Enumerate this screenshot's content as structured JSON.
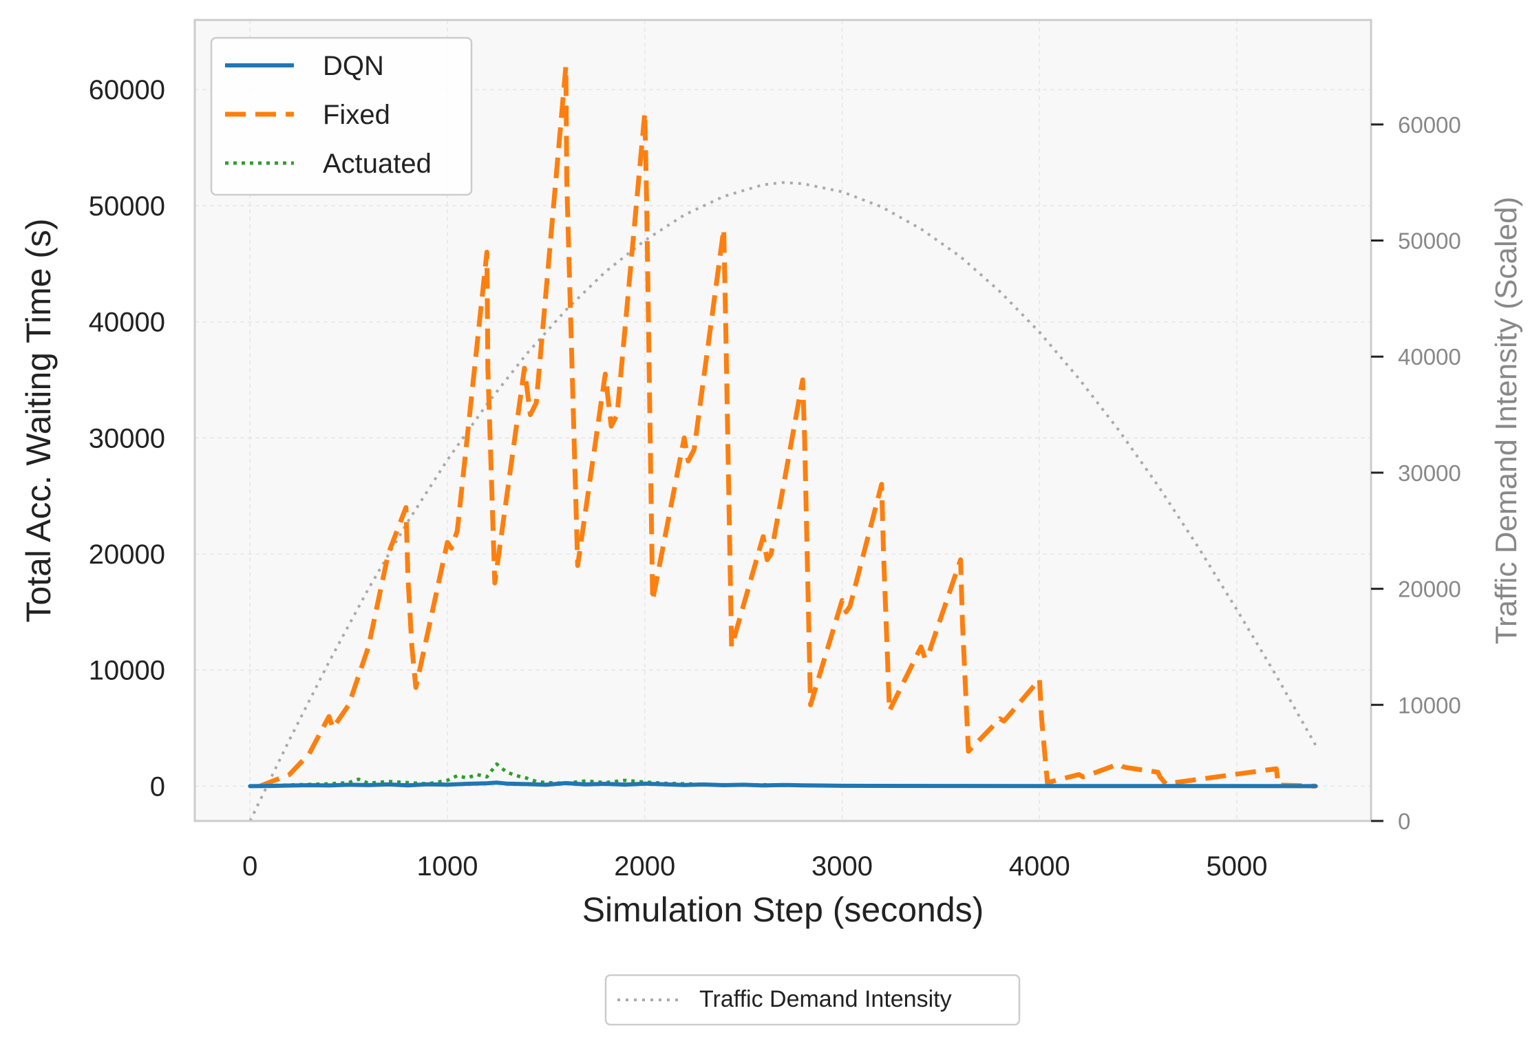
{
  "chart_data": {
    "type": "line",
    "title": "",
    "xlabel": "Simulation Step (seconds)",
    "ylabel": "Total Acc. Waiting Time (s)",
    "y2label": "Traffic Demand Intensity (Scaled)",
    "xlim": [
      -280,
      5680
    ],
    "ylim": [
      -3000,
      66000
    ],
    "y2lim": [
      0,
      69000
    ],
    "x_ticks": [
      0,
      1000,
      2000,
      3000,
      4000,
      5000
    ],
    "y_ticks": [
      0,
      10000,
      20000,
      30000,
      40000,
      50000,
      60000
    ],
    "y2_ticks": [
      0,
      10000,
      20000,
      30000,
      40000,
      50000,
      60000
    ],
    "x_tick_labels": [
      "0",
      "1000",
      "2000",
      "3000",
      "4000",
      "5000"
    ],
    "y_tick_labels": [
      "0",
      "10000",
      "20000",
      "30000",
      "40000",
      "50000",
      "60000"
    ],
    "y2_tick_labels": [
      "0",
      "10000",
      "20000",
      "30000",
      "40000",
      "50000",
      "60000"
    ],
    "grid": true,
    "legend_position": "top-left",
    "secondary_legend_position": "bottom-center",
    "colors": {
      "dqn": "#1f77b4",
      "fixed": "#ff7f0e",
      "actuated": "#2ca02c",
      "demand": "#aaaaaa",
      "plot_bg": "#f8f8f8",
      "frame": "#cccccc",
      "grid": "#e3e3e3",
      "tick_text": "#222222",
      "secondary_text": "#888888"
    },
    "series": [
      {
        "name": "DQN",
        "axis": "left",
        "style": "solid",
        "x": [
          0,
          100,
          200,
          300,
          400,
          500,
          600,
          700,
          800,
          900,
          1000,
          1100,
          1200,
          1250,
          1300,
          1400,
          1500,
          1600,
          1700,
          1800,
          1900,
          2000,
          2100,
          2200,
          2300,
          2400,
          2500,
          2600,
          2700,
          2800,
          2900,
          3000,
          3500,
          4000,
          4500,
          5000,
          5400
        ],
        "y": [
          0,
          20,
          50,
          80,
          60,
          120,
          90,
          150,
          70,
          160,
          130,
          200,
          250,
          300,
          220,
          180,
          120,
          260,
          150,
          200,
          130,
          220,
          160,
          100,
          140,
          80,
          120,
          60,
          100,
          70,
          50,
          30,
          20,
          10,
          10,
          5,
          0
        ]
      },
      {
        "name": "Fixed",
        "axis": "left",
        "style": "dashed",
        "x": [
          50,
          200,
          300,
          400,
          420,
          500,
          600,
          700,
          790,
          800,
          820,
          840,
          1000,
          1020,
          1050,
          1200,
          1205,
          1240,
          1390,
          1420,
          1450,
          1600,
          1605,
          1660,
          1800,
          1830,
          1860,
          2000,
          2010,
          2040,
          2200,
          2220,
          2250,
          2400,
          2410,
          2440,
          2600,
          2620,
          2640,
          2800,
          2810,
          2840,
          3000,
          3020,
          3040,
          3200,
          3210,
          3240,
          3400,
          3420,
          3440,
          3600,
          3610,
          3640,
          3800,
          3820,
          3840,
          4000,
          4010,
          4040,
          4200,
          4220,
          4240,
          4400,
          4420,
          4440,
          4600,
          4610,
          4640,
          5200,
          5210,
          5400
        ],
        "y": [
          0,
          1000,
          2800,
          6000,
          5000,
          7000,
          12000,
          20000,
          24000,
          18000,
          12000,
          8500,
          21000,
          20500,
          22000,
          46000,
          36000,
          17500,
          36000,
          32000,
          33000,
          62000,
          52000,
          19000,
          35500,
          31000,
          32000,
          58000,
          50000,
          16000,
          30000,
          28000,
          29000,
          48000,
          40000,
          12000,
          21500,
          19500,
          20000,
          35000,
          30000,
          7000,
          16000,
          15000,
          15500,
          26000,
          20000,
          6500,
          12000,
          11000,
          11500,
          19500,
          14000,
          3000,
          5800,
          5600,
          6000,
          9200,
          6000,
          300,
          1000,
          800,
          900,
          1900,
          1700,
          1600,
          1200,
          800,
          200,
          1500,
          100,
          0
        ]
      },
      {
        "name": "Actuated",
        "axis": "left",
        "style": "dotted",
        "x": [
          0,
          100,
          200,
          300,
          400,
          500,
          550,
          600,
          700,
          800,
          900,
          1000,
          1050,
          1100,
          1150,
          1200,
          1250,
          1300,
          1350,
          1400,
          1450,
          1500,
          1600,
          1700,
          1800,
          1900,
          2000,
          2100,
          2200,
          2300,
          2400,
          2500,
          2600,
          2700,
          2800,
          2900,
          3000,
          3500,
          4000,
          4500,
          5000,
          5400
        ],
        "y": [
          0,
          50,
          100,
          150,
          200,
          300,
          600,
          250,
          400,
          300,
          200,
          500,
          900,
          700,
          1000,
          800,
          1900,
          1200,
          900,
          700,
          400,
          300,
          250,
          450,
          300,
          500,
          350,
          250,
          200,
          150,
          120,
          100,
          120,
          80,
          60,
          50,
          40,
          20,
          10,
          5,
          0,
          0
        ]
      },
      {
        "name": "Traffic Demand Intensity",
        "axis": "right",
        "style": "dotted",
        "x": [
          0,
          200,
          400,
          600,
          800,
          1000,
          1200,
          1400,
          1600,
          1800,
          2000,
          2200,
          2400,
          2600,
          2700,
          2800,
          3000,
          3200,
          3400,
          3600,
          3800,
          4000,
          4200,
          4400,
          4600,
          4800,
          5000,
          5200,
          5400
        ],
        "y": [
          0,
          7000,
          13700,
          20000,
          25800,
          31100,
          35900,
          40200,
          44000,
          47300,
          50000,
          52200,
          53800,
          54800,
          55000,
          54900,
          54200,
          52900,
          51000,
          48600,
          45600,
          42100,
          38100,
          33700,
          28900,
          23700,
          18200,
          12500,
          6500
        ]
      }
    ],
    "legend_entries": [
      "DQN",
      "Fixed",
      "Actuated"
    ],
    "secondary_legend_entries": [
      "Traffic Demand Intensity"
    ]
  }
}
